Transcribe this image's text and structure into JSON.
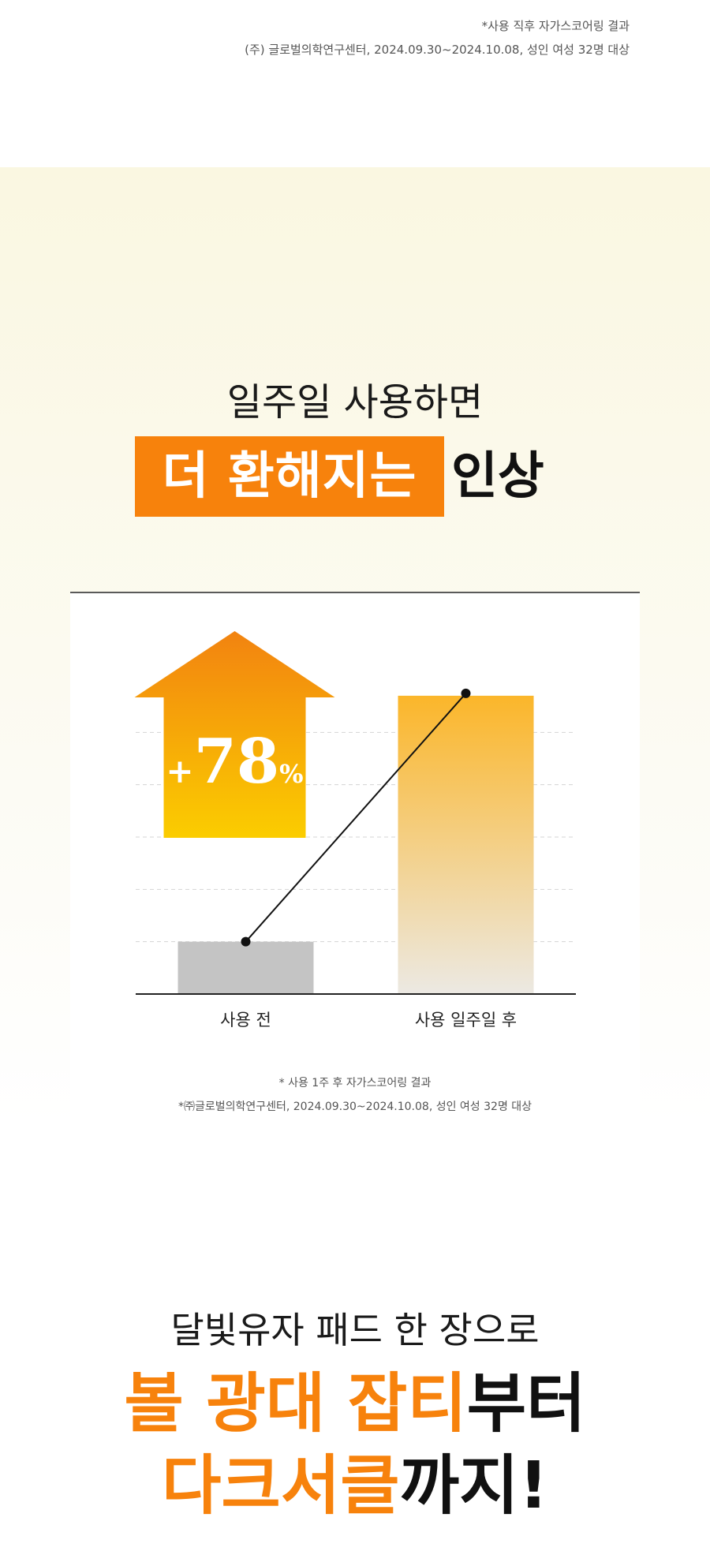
{
  "top_notes": {
    "line1": "*사용 직후 자가스코어링 결과",
    "line2": "(주) 글로벌의학연구센터, 2024.09.30~2024.10.08, 성인 여성 32명 대상"
  },
  "headline": {
    "line1": "일주일 사용하면",
    "highlight": "더 환해지는",
    "tail": "인상"
  },
  "chart_data": {
    "type": "bar",
    "categories": [
      "사용 전",
      "사용 일주일 후"
    ],
    "values": [
      1,
      5.7
    ],
    "ylim": [
      0,
      6
    ],
    "grid": true,
    "increase_label": "+78%",
    "increase_value": "+78",
    "increase_unit": "%",
    "colors": {
      "before": "#c4c4c4",
      "after_top": "#fbb62a",
      "after_bottom": "#ece9e3",
      "arrow_top": "#f28310",
      "arrow_bottom": "#fbcd00"
    }
  },
  "chart_notes": {
    "line1": "* 사용 1주 후 자가스코어링 결과",
    "line2": "*㈜글로벌의학연구센터, 2024.09.30~2024.10.08, 성인 여성 32명 대상"
  },
  "promo": {
    "line1": "달빛유자 패드 한 장으로",
    "line2_orange": "볼 광대 잡티",
    "line2_black": "부터",
    "line3_orange": "다크서클",
    "line3_black": "까지!"
  }
}
